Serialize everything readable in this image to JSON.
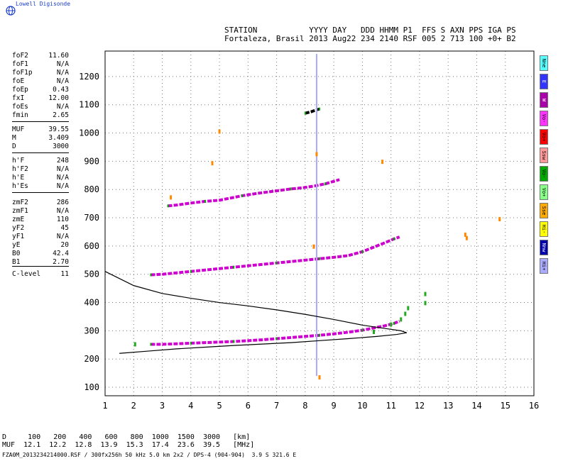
{
  "brand": "Lowell Digisonde",
  "header": {
    "line1": "STATION           YYYY DAY   DDD HHMM P1  FFS S AXN PPS IGA PS",
    "line2": "Fortaleza, Brasil 2013 Aug22 234 2140 RSF 005 2 713 100 +0+ B2"
  },
  "params": [
    {
      "name": "foF2",
      "value": "11.60"
    },
    {
      "name": "foF1",
      "value": "N/A"
    },
    {
      "name": "foF1p",
      "value": "N/A"
    },
    {
      "name": "foE",
      "value": "N/A"
    },
    {
      "name": "foEp",
      "value": "0.43"
    },
    {
      "name": "fxI",
      "value": "12.00"
    },
    {
      "name": "foEs",
      "value": "N/A"
    },
    {
      "name": "fmin",
      "value": "2.65"
    },
    {
      "name": "MUF",
      "value": "39.55"
    },
    {
      "name": "M",
      "value": "3.409"
    },
    {
      "name": "D",
      "value": "3000"
    },
    {
      "name": "h'F",
      "value": "248"
    },
    {
      "name": "h'F2",
      "value": "N/A"
    },
    {
      "name": "h'E",
      "value": "N/A"
    },
    {
      "name": "h'Es",
      "value": "N/A"
    },
    {
      "name": "zmF2",
      "value": "286"
    },
    {
      "name": "zmF1",
      "value": "N/A"
    },
    {
      "name": "zmE",
      "value": "110"
    },
    {
      "name": "yF2",
      "value": "45"
    },
    {
      "name": "yF1",
      "value": "N/A"
    },
    {
      "name": "yE",
      "value": "20"
    },
    {
      "name": "B0",
      "value": "42.4"
    },
    {
      "name": "B1",
      "value": "2.70"
    },
    {
      "name": "C-level",
      "value": "11"
    }
  ],
  "legend": [
    {
      "label": "Nne",
      "color": "#55ffff"
    },
    {
      "label": "E",
      "color": "#3333ff"
    },
    {
      "label": "W",
      "color": "#aa00aa"
    },
    {
      "label": "Vo-",
      "color": "#ff33ff"
    },
    {
      "label": "Vo+",
      "color": "#ff0000"
    },
    {
      "label": "Ssw",
      "color": "#ff9999"
    },
    {
      "label": "Vo-",
      "color": "#00aa00"
    },
    {
      "label": "Vo+",
      "color": "#88ff88"
    },
    {
      "label": "Sse",
      "color": "#ffaa00"
    },
    {
      "label": "Hi-",
      "color": "#ffff00"
    },
    {
      "label": "Nnw",
      "color": "#0000aa"
    },
    {
      "label": "Hi+",
      "color": "#aaaaff"
    }
  ],
  "footer": {
    "d_row": "D     100   200   400   600   800  1000  1500  3000   [km]",
    "muf_row": "MUF  12.1  12.2  12.8  13.9  15.3  17.4  23.6  39.5   [MHz]",
    "file": "FZA0M_2013234214000.RSF / 300fx256h 50 kHz 5.0 km 2x2 / DPS-4 (904-904)  3.9 S 321.6 E"
  },
  "chart_data": {
    "type": "scatter",
    "x_ticks": [
      1,
      2,
      3,
      4,
      5,
      6,
      7,
      8,
      9,
      10,
      11,
      12,
      13,
      14,
      15,
      16
    ],
    "y_ticks": [
      100,
      200,
      300,
      400,
      500,
      600,
      700,
      800,
      900,
      1000,
      1100,
      1200
    ],
    "xlim": [
      1,
      16
    ],
    "ylim": [
      70,
      1290
    ],
    "grid": true,
    "traces": [
      {
        "name": "F2 O-trace",
        "color": "#cc00cc",
        "points": [
          [
            2.6,
            252
          ],
          [
            3.0,
            252
          ],
          [
            3.5,
            254
          ],
          [
            4.0,
            256
          ],
          [
            4.5,
            258
          ],
          [
            5.0,
            260
          ],
          [
            5.5,
            262
          ],
          [
            6.0,
            265
          ],
          [
            6.5,
            268
          ],
          [
            7.0,
            272
          ],
          [
            7.5,
            276
          ],
          [
            8.0,
            280
          ],
          [
            8.5,
            284
          ],
          [
            9.0,
            289
          ],
          [
            9.5,
            295
          ],
          [
            10.0,
            302
          ],
          [
            10.4,
            310
          ],
          [
            10.8,
            318
          ],
          [
            11.1,
            326
          ],
          [
            11.3,
            334
          ]
        ]
      },
      {
        "name": "F2 second hop",
        "color": "#cc00cc",
        "points": [
          [
            2.6,
            498
          ],
          [
            3.0,
            500
          ],
          [
            3.5,
            505
          ],
          [
            4.0,
            510
          ],
          [
            4.5,
            515
          ],
          [
            5.0,
            520
          ],
          [
            5.5,
            525
          ],
          [
            6.0,
            530
          ],
          [
            6.5,
            535
          ],
          [
            7.0,
            540
          ],
          [
            7.5,
            545
          ],
          [
            8.0,
            550
          ],
          [
            8.5,
            555
          ],
          [
            9.0,
            560
          ],
          [
            9.5,
            566
          ],
          [
            10.0,
            580
          ],
          [
            10.5,
            600
          ],
          [
            10.8,
            612
          ],
          [
            11.1,
            625
          ],
          [
            11.3,
            632
          ]
        ]
      },
      {
        "name": "F2 third hop",
        "color": "#cc00cc",
        "points": [
          [
            3.2,
            742
          ],
          [
            3.5,
            745
          ],
          [
            4.0,
            752
          ],
          [
            4.5,
            758
          ],
          [
            5.0,
            762
          ],
          [
            5.3,
            768
          ],
          [
            5.8,
            778
          ],
          [
            6.3,
            786
          ],
          [
            6.6,
            790
          ],
          [
            7.5,
            802
          ],
          [
            7.9,
            806
          ],
          [
            8.3,
            812
          ],
          [
            8.7,
            820
          ],
          [
            9.2,
            835
          ]
        ]
      },
      {
        "name": "F2 fourth hop",
        "color": "#000000",
        "points": [
          [
            8.0,
            1070
          ],
          [
            8.2,
            1075
          ],
          [
            8.4,
            1082
          ],
          [
            8.5,
            1085
          ]
        ]
      },
      {
        "name": "Vertical noise line",
        "color": "#aaaaff",
        "points": [
          [
            8.4,
            140
          ],
          [
            8.4,
            1280
          ]
        ]
      },
      {
        "name": "Model profile",
        "color": "#000000",
        "points": [
          [
            1.5,
            220
          ],
          [
            2.5,
            228
          ],
          [
            3.5,
            236
          ],
          [
            4.5,
            242
          ],
          [
            5.5,
            248
          ],
          [
            6.5,
            253
          ],
          [
            7.5,
            258
          ],
          [
            8.5,
            265
          ],
          [
            9.5,
            272
          ],
          [
            10.5,
            280
          ],
          [
            11.2,
            287
          ],
          [
            11.55,
            293
          ],
          [
            11.35,
            300
          ],
          [
            10.8,
            308
          ],
          [
            10.0,
            320
          ],
          [
            9.0,
            340
          ],
          [
            8.0,
            358
          ],
          [
            7.0,
            374
          ],
          [
            6.0,
            388
          ],
          [
            5.0,
            400
          ],
          [
            4.0,
            415
          ],
          [
            3.0,
            432
          ],
          [
            2.0,
            460
          ],
          [
            1.0,
            510
          ]
        ]
      },
      {
        "name": "Isolated echoes",
        "color": "#22aa22",
        "points": [
          [
            12.2,
            430
          ],
          [
            12.2,
            398
          ],
          [
            2.05,
            252
          ],
          [
            10.4,
            296
          ],
          [
            11.0,
            322
          ],
          [
            11.35,
            340
          ],
          [
            11.5,
            360
          ],
          [
            11.6,
            380
          ]
        ]
      },
      {
        "name": "Scattered echoes",
        "color": "#ff8800",
        "points": [
          [
            13.6,
            640
          ],
          [
            13.65,
            628
          ],
          [
            14.8,
            695
          ],
          [
            4.75,
            893
          ],
          [
            5.0,
            1005
          ],
          [
            10.7,
            898
          ],
          [
            3.3,
            772
          ],
          [
            8.3,
            598
          ],
          [
            8.4,
            925
          ],
          [
            8.5,
            135
          ]
        ]
      }
    ]
  }
}
